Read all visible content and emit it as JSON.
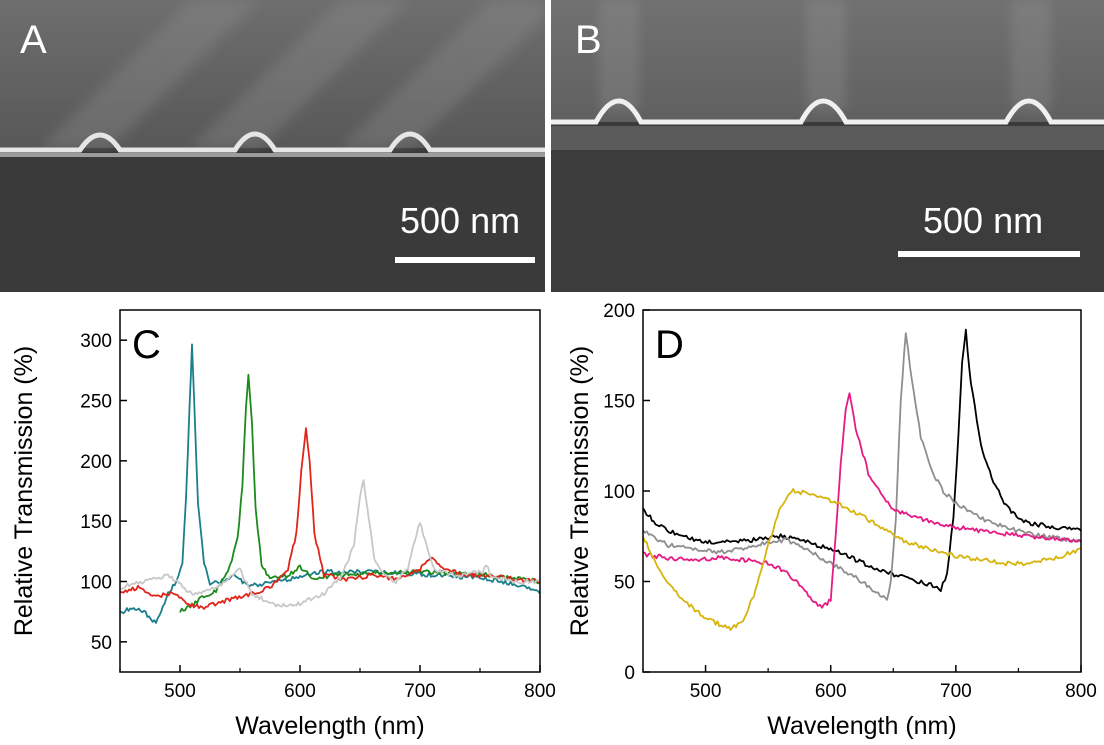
{
  "panels": {
    "a": {
      "letter": "A",
      "scale_label": "500 nm"
    },
    "b": {
      "letter": "B",
      "scale_label": "500 nm"
    }
  },
  "chart_data": [
    {
      "type": "line",
      "panel_label": "C",
      "title": "",
      "xlabel": "Wavelength (nm)",
      "ylabel": "Relative Transmission (%)",
      "xlim": [
        450,
        800
      ],
      "ylim": [
        25,
        325
      ],
      "xticks": [
        500,
        600,
        700,
        800
      ],
      "yticks": [
        50,
        100,
        150,
        200,
        250,
        300
      ],
      "grid": false,
      "series": [
        {
          "color": "#1a7f8a",
          "points": [
            [
              450,
              74
            ],
            [
              460,
              78
            ],
            [
              470,
              75
            ],
            [
              480,
              65
            ],
            [
              490,
              90
            ],
            [
              497,
              100
            ],
            [
              502,
              115
            ],
            [
              505,
              170
            ],
            [
              508,
              245
            ],
            [
              510,
              295
            ],
            [
              512,
              245
            ],
            [
              515,
              165
            ],
            [
              520,
              115
            ],
            [
              525,
              98
            ],
            [
              535,
              100
            ],
            [
              545,
              105
            ],
            [
              555,
              98
            ],
            [
              565,
              97
            ],
            [
              580,
              100
            ],
            [
              600,
              104
            ],
            [
              620,
              108
            ],
            [
              640,
              108
            ],
            [
              660,
              108
            ],
            [
              700,
              106
            ],
            [
              750,
              103
            ],
            [
              780,
              98
            ],
            [
              800,
              90
            ]
          ]
        },
        {
          "color": "#1c8a1c",
          "points": [
            [
              500,
              75
            ],
            [
              510,
              80
            ],
            [
              520,
              88
            ],
            [
              530,
              92
            ],
            [
              540,
              108
            ],
            [
              548,
              135
            ],
            [
              552,
              180
            ],
            [
              555,
              245
            ],
            [
              557,
              272
            ],
            [
              560,
              230
            ],
            [
              563,
              160
            ],
            [
              568,
              115
            ],
            [
              575,
              102
            ],
            [
              590,
              105
            ],
            [
              600,
              112
            ],
            [
              610,
              103
            ],
            [
              630,
              105
            ],
            [
              660,
              107
            ],
            [
              700,
              108
            ],
            [
              750,
              106
            ],
            [
              800,
              100
            ]
          ]
        },
        {
          "color": "#e0251a",
          "points": [
            [
              450,
              90
            ],
            [
              465,
              95
            ],
            [
              480,
              88
            ],
            [
              495,
              90
            ],
            [
              510,
              80
            ],
            [
              520,
              78
            ],
            [
              540,
              85
            ],
            [
              560,
              90
            ],
            [
              575,
              95
            ],
            [
              590,
              110
            ],
            [
              597,
              140
            ],
            [
              601,
              190
            ],
            [
              605,
              228
            ],
            [
              608,
              200
            ],
            [
              612,
              140
            ],
            [
              620,
              105
            ],
            [
              640,
              102
            ],
            [
              660,
              105
            ],
            [
              680,
              102
            ],
            [
              700,
              110
            ],
            [
              710,
              120
            ],
            [
              720,
              110
            ],
            [
              740,
              105
            ],
            [
              760,
              105
            ],
            [
              780,
              102
            ],
            [
              800,
              100
            ]
          ]
        },
        {
          "color": "#c8c8c8",
          "points": [
            [
              450,
              95
            ],
            [
              470,
              100
            ],
            [
              490,
              105
            ],
            [
              510,
              90
            ],
            [
              530,
              95
            ],
            [
              550,
              110
            ],
            [
              560,
              90
            ],
            [
              580,
              80
            ],
            [
              600,
              82
            ],
            [
              620,
              90
            ],
            [
              635,
              105
            ],
            [
              645,
              130
            ],
            [
              650,
              170
            ],
            [
              653,
              185
            ],
            [
              656,
              160
            ],
            [
              662,
              120
            ],
            [
              670,
              105
            ],
            [
              680,
              100
            ],
            [
              690,
              112
            ],
            [
              697,
              138
            ],
            [
              700,
              150
            ],
            [
              704,
              135
            ],
            [
              712,
              110
            ],
            [
              730,
              105
            ],
            [
              752,
              108
            ],
            [
              755,
              115
            ],
            [
              760,
              103
            ],
            [
              780,
              100
            ],
            [
              800,
              100
            ]
          ]
        }
      ]
    },
    {
      "type": "line",
      "panel_label": "D",
      "title": "",
      "xlabel": "Wavelength (nm)",
      "ylabel": "Relative Transmission (%)",
      "xlim": [
        450,
        800
      ],
      "ylim": [
        0,
        200
      ],
      "xticks": [
        500,
        600,
        700,
        800
      ],
      "yticks": [
        0,
        50,
        100,
        150,
        200
      ],
      "grid": false,
      "series": [
        {
          "color": "#000000",
          "points": [
            [
              450,
              90
            ],
            [
              460,
              82
            ],
            [
              480,
              75
            ],
            [
              500,
              72
            ],
            [
              520,
              72
            ],
            [
              540,
              73
            ],
            [
              560,
              75
            ],
            [
              580,
              72
            ],
            [
              600,
              68
            ],
            [
              620,
              62
            ],
            [
              640,
              56
            ],
            [
              660,
              52
            ],
            [
              680,
              48
            ],
            [
              688,
              45
            ],
            [
              693,
              55
            ],
            [
              698,
              85
            ],
            [
              702,
              130
            ],
            [
              705,
              170
            ],
            [
              708,
              188
            ],
            [
              712,
              160
            ],
            [
              720,
              125
            ],
            [
              730,
              105
            ],
            [
              740,
              92
            ],
            [
              750,
              85
            ],
            [
              760,
              82
            ],
            [
              780,
              80
            ],
            [
              800,
              78
            ]
          ]
        },
        {
          "color": "#8e8e8e",
          "points": [
            [
              450,
              78
            ],
            [
              470,
              70
            ],
            [
              490,
              68
            ],
            [
              510,
              66
            ],
            [
              530,
              68
            ],
            [
              550,
              72
            ],
            [
              565,
              73
            ],
            [
              580,
              68
            ],
            [
              600,
              60
            ],
            [
              620,
              52
            ],
            [
              635,
              45
            ],
            [
              645,
              40
            ],
            [
              648,
              50
            ],
            [
              652,
              85
            ],
            [
              656,
              150
            ],
            [
              660,
              188
            ],
            [
              665,
              160
            ],
            [
              672,
              130
            ],
            [
              680,
              112
            ],
            [
              690,
              100
            ],
            [
              700,
              93
            ],
            [
              720,
              85
            ],
            [
              740,
              80
            ],
            [
              760,
              76
            ],
            [
              800,
              72
            ]
          ]
        },
        {
          "color": "#e61a84",
          "points": [
            [
              450,
              65
            ],
            [
              470,
              63
            ],
            [
              490,
              62
            ],
            [
              510,
              63
            ],
            [
              530,
              62
            ],
            [
              550,
              60
            ],
            [
              565,
              55
            ],
            [
              575,
              48
            ],
            [
              585,
              40
            ],
            [
              593,
              35
            ],
            [
              600,
              40
            ],
            [
              604,
              75
            ],
            [
              608,
              115
            ],
            [
              612,
              145
            ],
            [
              615,
              153
            ],
            [
              620,
              135
            ],
            [
              630,
              110
            ],
            [
              640,
              98
            ],
            [
              650,
              90
            ],
            [
              660,
              87
            ],
            [
              680,
              83
            ],
            [
              700,
              80
            ],
            [
              730,
              77
            ],
            [
              760,
              75
            ],
            [
              800,
              72
            ]
          ]
        },
        {
          "color": "#d7b40c",
          "points": [
            [
              450,
              75
            ],
            [
              460,
              60
            ],
            [
              475,
              45
            ],
            [
              490,
              35
            ],
            [
              505,
              28
            ],
            [
              520,
              24
            ],
            [
              530,
              28
            ],
            [
              540,
              45
            ],
            [
              550,
              70
            ],
            [
              560,
              92
            ],
            [
              570,
              100
            ],
            [
              585,
              98
            ],
            [
              600,
              95
            ],
            [
              620,
              88
            ],
            [
              640,
              80
            ],
            [
              660,
              72
            ],
            [
              680,
              68
            ],
            [
              700,
              64
            ],
            [
              720,
              62
            ],
            [
              740,
              60
            ],
            [
              760,
              60
            ],
            [
              780,
              63
            ],
            [
              800,
              68
            ]
          ]
        }
      ]
    }
  ]
}
